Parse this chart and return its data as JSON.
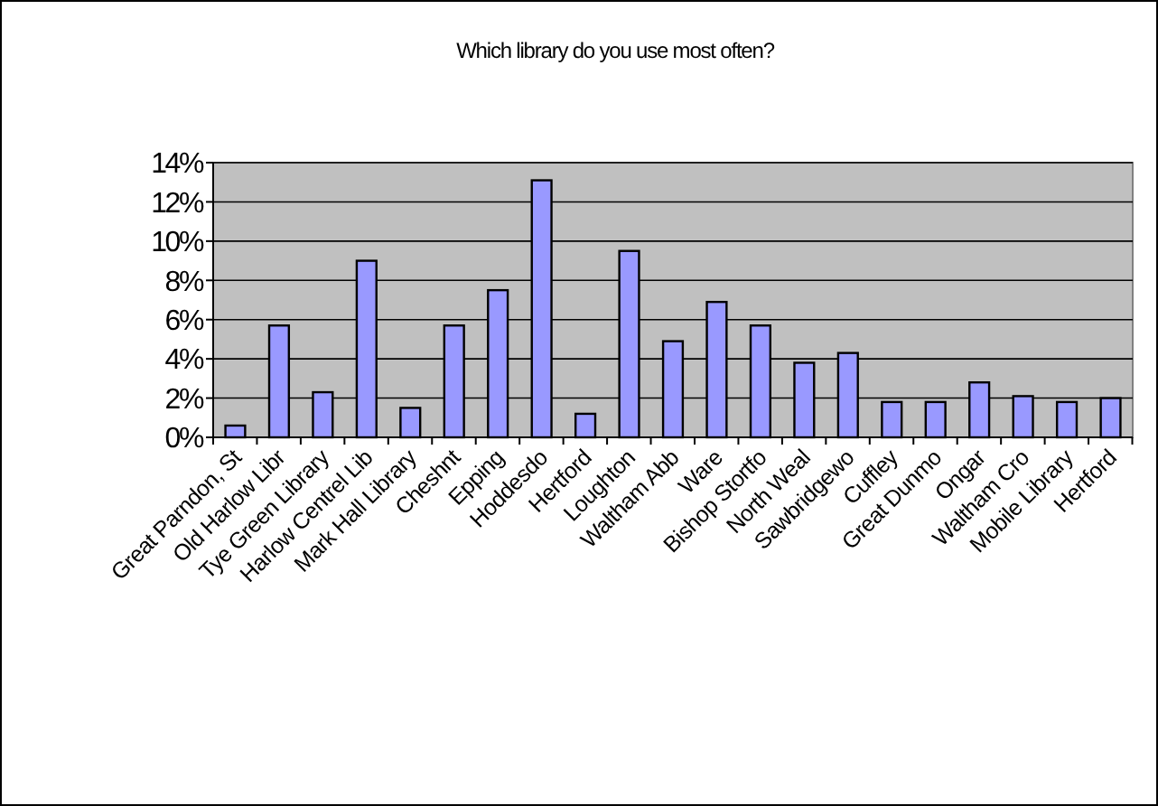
{
  "chart_data": {
    "type": "bar",
    "title": "Which library do you use most often?",
    "categories": [
      "Great Parndon, St",
      "Old Harlow Libr",
      "Tye Green Library",
      "Harlow Centrel Lib",
      "Mark Hall Library",
      "Cheshnt",
      "Epping",
      "Hoddesdo",
      "Hertford",
      "Loughton",
      "Waltham Abb",
      "Ware",
      "Bishop Stortfo",
      "North Weal",
      "Sawbridgewo",
      "Cuffley",
      "Great Dunmo",
      "Ongar",
      "Waltham Cro",
      "Mobile Library",
      "Hertford"
    ],
    "values": [
      0.6,
      5.7,
      2.3,
      9.0,
      1.5,
      5.7,
      7.5,
      13.1,
      1.2,
      9.5,
      4.9,
      6.9,
      5.7,
      3.8,
      4.3,
      1.8,
      1.8,
      2.8,
      2.1,
      1.8,
      2.0
    ],
    "color": "#9999ff",
    "ylim": [
      0,
      14
    ],
    "yticks": [
      {
        "value": 0,
        "label": "0%"
      },
      {
        "value": 2,
        "label": "2%"
      },
      {
        "value": 4,
        "label": "4%"
      },
      {
        "value": 6,
        "label": "6%"
      },
      {
        "value": 8,
        "label": "8%"
      },
      {
        "value": 10,
        "label": "10%"
      },
      {
        "value": 12,
        "label": "12%"
      },
      {
        "value": 14,
        "label": "14%"
      }
    ],
    "grid": "y"
  }
}
